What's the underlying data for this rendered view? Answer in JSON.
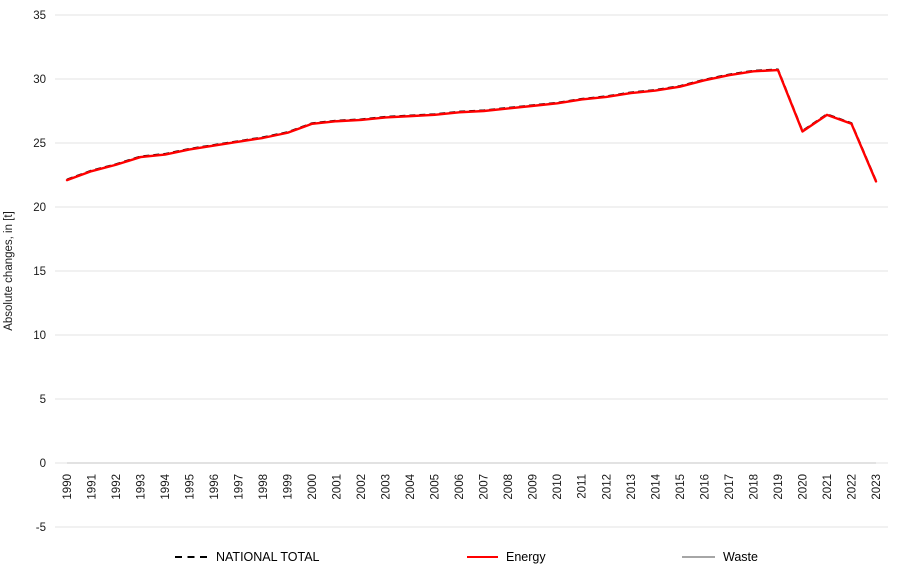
{
  "chart_data": {
    "type": "line",
    "title": "",
    "xlabel": "",
    "ylabel": "Absolute changes, in [t]",
    "ylim": [
      -5,
      35
    ],
    "yticks": [
      35,
      30,
      25,
      20,
      15,
      10,
      5,
      0,
      -5
    ],
    "grid": true,
    "legend_position": "bottom",
    "x": [
      "1990",
      "1991",
      "1992",
      "1993",
      "1994",
      "1995",
      "1996",
      "1997",
      "1998",
      "1999",
      "2000",
      "2001",
      "2002",
      "2003",
      "2004",
      "2005",
      "2006",
      "2007",
      "2008",
      "2009",
      "2010",
      "2011",
      "2012",
      "2013",
      "2014",
      "2015",
      "2016",
      "2017",
      "2018",
      "2019",
      "2020",
      "2021",
      "2022",
      "2023"
    ],
    "series": [
      {
        "name": "NATIONAL TOTAL",
        "color": "#000000",
        "style": "dashed",
        "values": [
          22.1,
          22.8,
          23.3,
          23.9,
          24.1,
          24.5,
          24.8,
          25.1,
          25.4,
          25.8,
          26.5,
          26.7,
          26.8,
          27.0,
          27.1,
          27.2,
          27.4,
          27.5,
          27.7,
          27.9,
          28.1,
          28.4,
          28.6,
          28.9,
          29.1,
          29.4,
          29.9,
          30.3,
          30.6,
          30.7,
          25.9,
          27.2,
          26.5,
          22.0
        ]
      },
      {
        "name": "Energy",
        "color": "#FF0000",
        "style": "solid",
        "values": [
          22.1,
          22.8,
          23.3,
          23.9,
          24.1,
          24.5,
          24.8,
          25.1,
          25.4,
          25.8,
          26.5,
          26.7,
          26.8,
          27.0,
          27.1,
          27.2,
          27.4,
          27.5,
          27.7,
          27.9,
          28.1,
          28.4,
          28.6,
          28.9,
          29.1,
          29.4,
          29.9,
          30.3,
          30.6,
          30.7,
          25.9,
          27.2,
          26.5,
          22.0
        ]
      },
      {
        "name": "Waste",
        "color": "#A6A6A6",
        "style": "solid",
        "values": [
          0,
          0,
          0,
          0,
          0,
          0,
          0,
          0,
          0,
          0,
          0,
          0,
          0,
          0,
          0,
          0,
          0,
          0,
          0,
          0,
          0,
          0,
          0,
          0,
          0,
          0,
          0,
          0,
          0,
          0,
          0,
          0,
          0,
          0
        ]
      }
    ]
  },
  "legend": {
    "items": [
      {
        "label": "NATIONAL TOTAL",
        "color": "#000000",
        "style": "dashed"
      },
      {
        "label": "Energy",
        "color": "#FF0000",
        "style": "solid"
      },
      {
        "label": "Waste",
        "color": "#A6A6A6",
        "style": "solid"
      }
    ]
  },
  "colors": {
    "gridline": "#E3E3E3",
    "axis_text": "#1A1A1A",
    "background": "#FFFFFF"
  }
}
